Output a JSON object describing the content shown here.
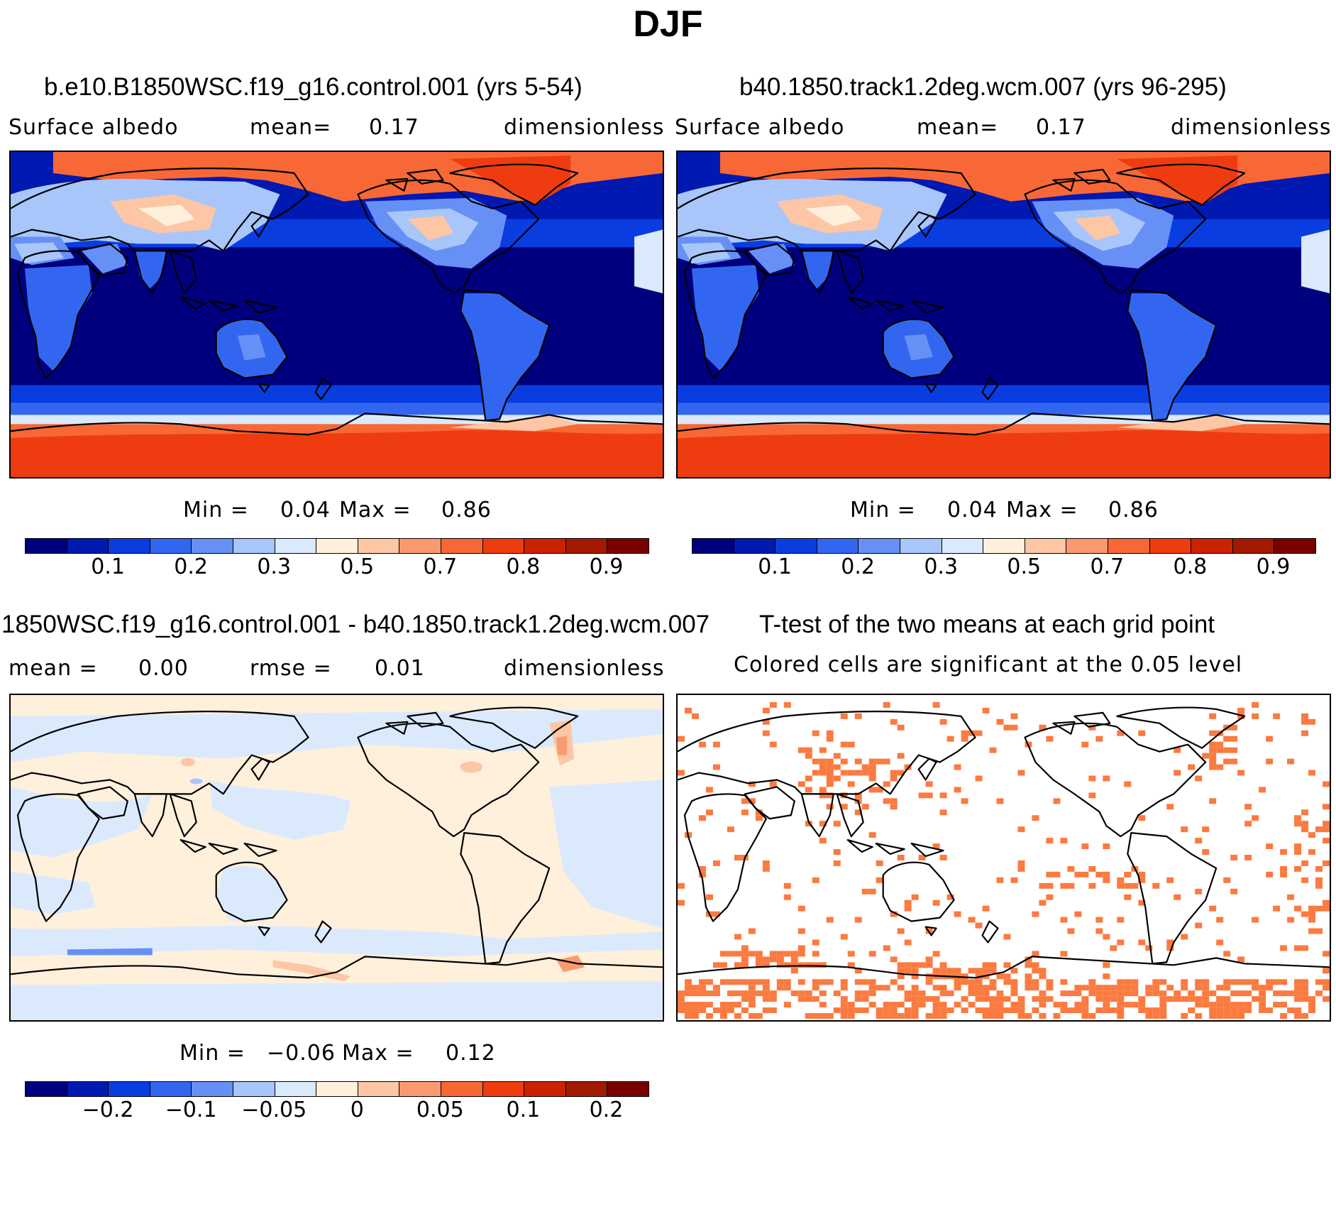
{
  "title": "DJF",
  "panels": [
    {
      "id": "control",
      "title": "b.e10.B1850WSC.f19_g16.control.001 (yrs 5-54)",
      "variable": "Surface albedo",
      "mean_label": "mean=",
      "mean_value": "0.17",
      "units": "dimensionless",
      "min_label": "Min =",
      "min_value": "0.04",
      "max_label": "Max =",
      "max_value": "0.86"
    },
    {
      "id": "experiment",
      "title": "b40.1850.track1.2deg.wcm.007 (yrs 96-295)",
      "variable": "Surface albedo",
      "mean_label": "mean=",
      "mean_value": "0.17",
      "units": "dimensionless",
      "min_label": "Min =",
      "min_value": "0.04",
      "max_label": "Max =",
      "max_value": "0.86"
    },
    {
      "id": "difference",
      "title": "1850WSC.f19_g16.control.001 - b40.1850.track1.2deg.wcm.007",
      "mean_label": "mean =",
      "mean_value": "0.00",
      "rmse_label": "rmse =",
      "rmse_value": "0.01",
      "units": "dimensionless",
      "min_label": "Min =",
      "min_value": "−0.06",
      "max_label": "Max =",
      "max_value": "0.12"
    },
    {
      "id": "ttest",
      "title": "T-test of the two means at each grid point",
      "subtitle": "Colored cells are significant at the 0.05 level"
    }
  ],
  "colorbars": {
    "absolute": {
      "colors": [
        "#00007f",
        "#0019b0",
        "#0a3de0",
        "#3366f0",
        "#6690f5",
        "#a8c6fa",
        "#dbe9fd",
        "#fff0dc",
        "#fdc6a5",
        "#fb9a70",
        "#f76836",
        "#ee3c10",
        "#cc2200",
        "#a31a00",
        "#7a0000"
      ],
      "labels": [
        "0.1",
        "0.2",
        "0.3",
        "0.5",
        "0.7",
        "0.8",
        "0.9"
      ]
    },
    "difference": {
      "colors": [
        "#00007f",
        "#0019b0",
        "#0a3de0",
        "#3366f0",
        "#6690f5",
        "#a8c6fa",
        "#dbe9fd",
        "#fff0dc",
        "#fdc6a5",
        "#fb9a70",
        "#f76836",
        "#ee3c10",
        "#cc2200",
        "#a31a00",
        "#7a0000"
      ],
      "labels": [
        "−0.2",
        "−0.1",
        "−0.05",
        "0",
        "0.05",
        "0.1",
        "0.2"
      ]
    }
  },
  "map_colors": {
    "ocean_deep": "#0019b0",
    "ocean_mid": "#0a3de0",
    "sea_ice": "#f76836",
    "land_dark": "#3366f0",
    "land_light": "#a8c6fa",
    "snow": "#ee3c10",
    "diff_neg": "#dbe9fd",
    "diff_pos": "#fff0dc",
    "significant": "#fb7a40"
  }
}
